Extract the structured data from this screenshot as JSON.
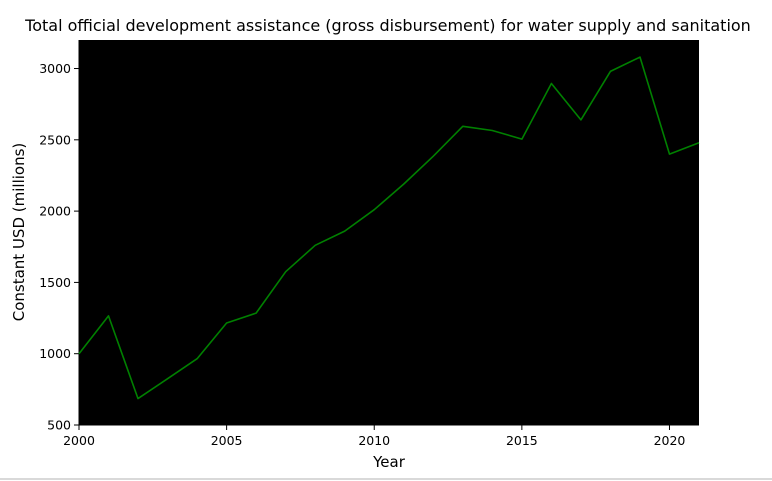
{
  "chart_data": {
    "type": "line",
    "title": "Total official development assistance (gross disbursement) for water supply and sanitation",
    "xlabel": "Year",
    "ylabel": "Constant USD (millions)",
    "xlim": [
      2000,
      2021
    ],
    "ylim": [
      500,
      3200
    ],
    "xticks": [
      2000,
      2005,
      2010,
      2015,
      2020
    ],
    "yticks": [
      500,
      1000,
      1500,
      2000,
      2500,
      3000
    ],
    "xtick_labels": [
      "2000",
      "2005",
      "2010",
      "2015",
      "2020"
    ],
    "ytick_labels": [
      "500",
      "1000",
      "1500",
      "2000",
      "2500",
      "3000"
    ],
    "grid": false,
    "plot_background": "#000000",
    "series": [
      {
        "color": "#008000",
        "x": [
          2000,
          2001,
          2002,
          2003,
          2004,
          2005,
          2006,
          2007,
          2008,
          2009,
          2010,
          2011,
          2012,
          2013,
          2014,
          2015,
          2016,
          2017,
          2018,
          2019,
          2020,
          2021
        ],
        "y": [
          1000,
          1265,
          685,
          825,
          965,
          1215,
          1285,
          1575,
          1760,
          1860,
          2010,
          2190,
          2385,
          2595,
          2565,
          2505,
          2895,
          2640,
          2980,
          3080,
          2400,
          2480
        ]
      }
    ]
  }
}
